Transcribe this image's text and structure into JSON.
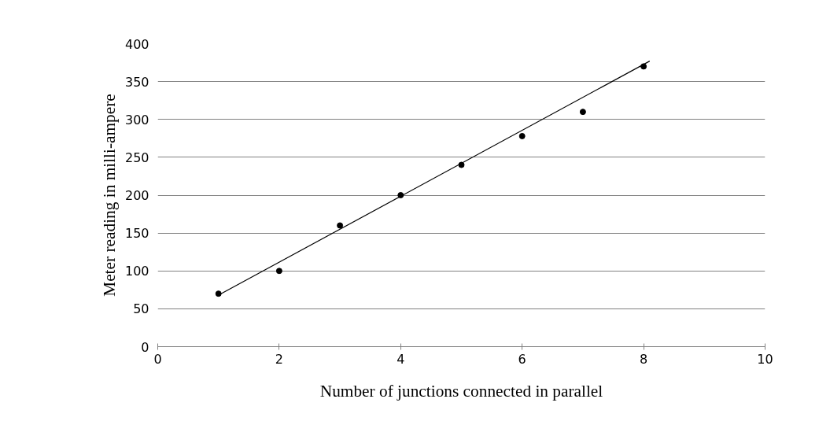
{
  "chart_data": {
    "type": "scatter",
    "xlabel": "Number of junctions connected in parallel",
    "ylabel": "Meter reading in milli-ampere",
    "series": [
      {
        "color": "#000000",
        "marker": "circle",
        "x": [
          1,
          2,
          3,
          4,
          5,
          6,
          7,
          8
        ],
        "values": [
          70,
          100,
          160,
          200,
          240,
          278,
          310,
          370
        ]
      },
      {
        "type": "line",
        "color": "#000000",
        "marker": "none",
        "x": [
          1,
          8.1
        ],
        "values": [
          68,
          377
        ]
      }
    ],
    "xlim": [
      0,
      10
    ],
    "ylim": [
      0,
      400
    ],
    "xticks": [
      0,
      2,
      4,
      6,
      8,
      10
    ],
    "yticks": [
      0,
      50,
      100,
      150,
      200,
      250,
      300,
      350,
      400
    ],
    "grid": "y",
    "line_style": "solid"
  }
}
